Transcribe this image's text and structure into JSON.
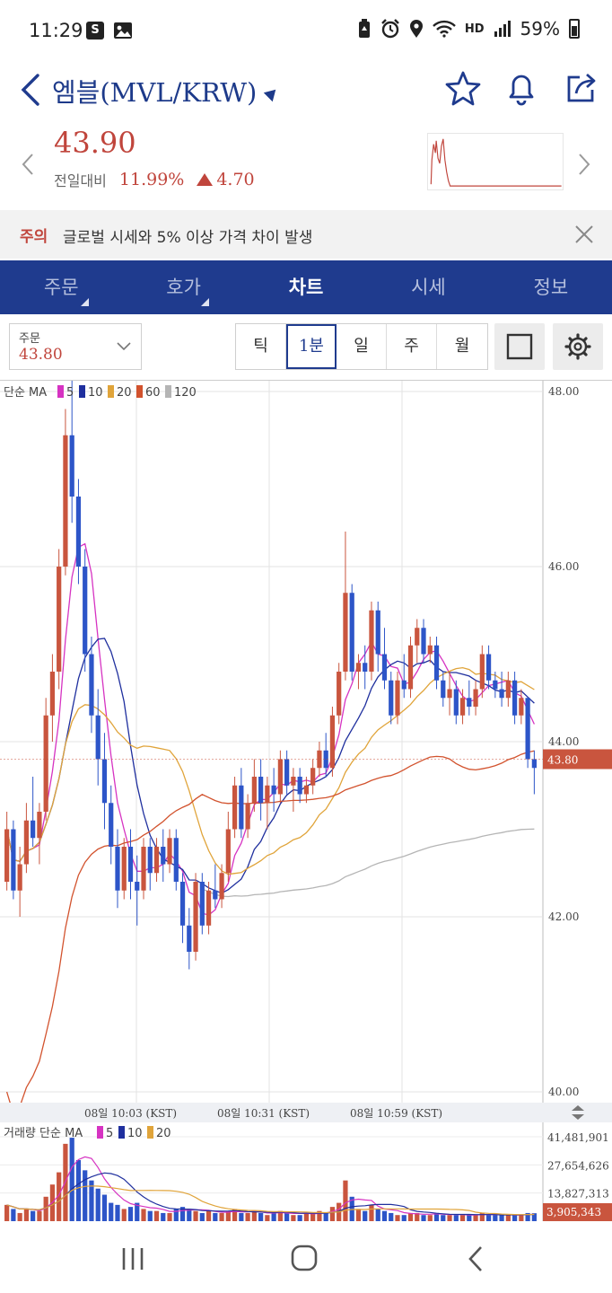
{
  "status": {
    "time": "11:29",
    "battery": "59%",
    "hd_label": "HD",
    "left_icons": [
      "s-badge-icon",
      "gallery-icon"
    ],
    "right_icons": [
      "battery-saver-icon",
      "alarm-icon",
      "location-icon",
      "wifi-icon",
      "signal-icon",
      "battery-icon"
    ]
  },
  "header": {
    "title": "엠블(MVL/KRW)",
    "icons": [
      "back-icon",
      "star-icon",
      "bell-icon",
      "share-icon"
    ]
  },
  "price": {
    "current": "43.90",
    "change_label": "전일대비",
    "change_rate": "11.99%",
    "change_amount": "4.70",
    "accent": "#c0453c"
  },
  "warning": {
    "tag": "주의",
    "message": "글로벌 시세와 5% 이상 가격 차이 발생"
  },
  "tabs": [
    {
      "label": "주문",
      "active": false,
      "has_menu": true
    },
    {
      "label": "호가",
      "active": false,
      "has_menu": true
    },
    {
      "label": "차트",
      "active": true,
      "has_menu": false
    },
    {
      "label": "시세",
      "active": false,
      "has_menu": false
    },
    {
      "label": "정보",
      "active": false,
      "has_menu": false
    }
  ],
  "toolbar": {
    "order_label": "주문",
    "order_value": "43.80",
    "intervals": [
      "틱",
      "1분",
      "일",
      "주",
      "월"
    ],
    "active_interval": "1분"
  },
  "chart_data": {
    "type": "candlestick",
    "price_legend": {
      "label": "단순 MA",
      "periods": [
        "5",
        "10",
        "20",
        "60",
        "120"
      ],
      "colors": [
        "#d633c2",
        "#1f2f9e",
        "#e0a43a",
        "#d2522d",
        "#b5b5b5"
      ]
    },
    "volume_legend": {
      "label": "거래량 단순 MA",
      "periods": [
        "5",
        "10",
        "20"
      ],
      "colors": [
        "#d633c2",
        "#1f2f9e",
        "#e0a43a"
      ]
    },
    "y_ticks": [
      "48.00",
      "46.00",
      "44.00",
      "42.00",
      "40.00"
    ],
    "ylim": [
      40,
      48
    ],
    "current_price_tag": "43.80",
    "x_ticks": [
      "08일 10:03 (KST)",
      "08일 10:31 (KST)",
      "08일 10:59 (KST)"
    ],
    "volume_ticks": [
      "41,481,901",
      "27,654,626",
      "13,827,313"
    ],
    "current_volume_tag": "3,905,343",
    "up_color": "#c9553e",
    "down_color": "#2d55c8",
    "candles": [
      [
        42.4,
        43.2,
        42.3,
        43.0
      ],
      [
        43.0,
        43.1,
        42.2,
        42.3
      ],
      [
        42.3,
        42.8,
        42.0,
        42.6
      ],
      [
        42.6,
        43.3,
        42.5,
        43.1
      ],
      [
        43.1,
        43.6,
        42.8,
        42.9
      ],
      [
        42.9,
        43.3,
        42.6,
        43.2
      ],
      [
        43.2,
        44.5,
        43.1,
        44.3
      ],
      [
        44.3,
        45.0,
        44.0,
        44.8
      ],
      [
        44.8,
        46.2,
        44.6,
        46.0
      ],
      [
        46.0,
        47.8,
        45.9,
        47.5
      ],
      [
        47.5,
        48.2,
        46.5,
        46.8
      ],
      [
        46.8,
        47.0,
        45.8,
        46.0
      ],
      [
        46.0,
        46.2,
        44.8,
        45.0
      ],
      [
        45.0,
        45.2,
        44.1,
        44.3
      ],
      [
        44.3,
        44.6,
        43.5,
        43.8
      ],
      [
        43.8,
        44.1,
        43.0,
        43.3
      ],
      [
        43.3,
        43.5,
        42.6,
        42.8
      ],
      [
        42.8,
        43.0,
        42.1,
        42.3
      ],
      [
        42.3,
        42.9,
        42.2,
        42.8
      ],
      [
        42.8,
        43.0,
        42.2,
        42.4
      ],
      [
        42.4,
        42.7,
        41.9,
        42.3
      ],
      [
        42.3,
        42.9,
        42.2,
        42.8
      ],
      [
        42.8,
        42.9,
        42.3,
        42.5
      ],
      [
        42.5,
        42.9,
        42.4,
        42.8
      ],
      [
        42.8,
        43.0,
        42.4,
        42.6
      ],
      [
        42.6,
        43.0,
        42.5,
        42.9
      ],
      [
        42.9,
        43.0,
        42.3,
        42.4
      ],
      [
        42.4,
        42.5,
        41.7,
        41.9
      ],
      [
        41.9,
        42.1,
        41.4,
        41.6
      ],
      [
        41.6,
        42.5,
        41.5,
        42.4
      ],
      [
        42.4,
        42.5,
        41.8,
        41.9
      ],
      [
        41.9,
        42.4,
        41.8,
        42.3
      ],
      [
        42.3,
        42.6,
        42.1,
        42.2
      ],
      [
        42.2,
        42.6,
        42.1,
        42.5
      ],
      [
        42.5,
        43.2,
        42.4,
        43.0
      ],
      [
        43.0,
        43.6,
        42.9,
        43.5
      ],
      [
        43.5,
        43.7,
        42.9,
        43.0
      ],
      [
        43.0,
        43.4,
        42.9,
        43.3
      ],
      [
        43.3,
        43.8,
        43.2,
        43.6
      ],
      [
        43.6,
        43.8,
        43.1,
        43.3
      ],
      [
        43.3,
        43.6,
        43.0,
        43.5
      ],
      [
        43.5,
        43.7,
        43.2,
        43.4
      ],
      [
        43.4,
        43.9,
        43.3,
        43.8
      ],
      [
        43.8,
        43.9,
        43.4,
        43.5
      ],
      [
        43.5,
        43.7,
        43.2,
        43.6
      ],
      [
        43.6,
        43.7,
        43.3,
        43.4
      ],
      [
        43.4,
        43.6,
        43.3,
        43.5
      ],
      [
        43.5,
        43.8,
        43.4,
        43.7
      ],
      [
        43.7,
        44.0,
        43.6,
        43.9
      ],
      [
        43.9,
        44.1,
        43.6,
        43.7
      ],
      [
        43.7,
        44.4,
        43.6,
        44.3
      ],
      [
        44.3,
        44.9,
        44.2,
        44.8
      ],
      [
        44.8,
        46.4,
        44.7,
        45.7
      ],
      [
        45.7,
        45.8,
        44.7,
        44.8
      ],
      [
        44.8,
        45.0,
        44.6,
        44.9
      ],
      [
        44.9,
        45.1,
        44.6,
        44.8
      ],
      [
        44.8,
        45.6,
        44.7,
        45.5
      ],
      [
        45.5,
        45.6,
        44.8,
        45.0
      ],
      [
        45.0,
        45.3,
        44.6,
        44.7
      ],
      [
        44.7,
        44.8,
        44.2,
        44.3
      ],
      [
        44.3,
        44.8,
        44.2,
        44.7
      ],
      [
        44.7,
        45.0,
        44.5,
        44.6
      ],
      [
        44.6,
        45.2,
        44.5,
        45.1
      ],
      [
        45.1,
        45.4,
        44.9,
        45.3
      ],
      [
        45.3,
        45.4,
        44.9,
        45.0
      ],
      [
        45.0,
        45.2,
        44.9,
        45.1
      ],
      [
        45.1,
        45.2,
        44.6,
        44.7
      ],
      [
        44.7,
        44.8,
        44.4,
        44.5
      ],
      [
        44.5,
        44.8,
        44.3,
        44.6
      ],
      [
        44.6,
        44.7,
        44.2,
        44.3
      ],
      [
        44.3,
        44.6,
        44.2,
        44.5
      ],
      [
        44.5,
        44.7,
        44.3,
        44.4
      ],
      [
        44.4,
        44.7,
        44.3,
        44.6
      ],
      [
        44.6,
        45.1,
        44.5,
        45.0
      ],
      [
        45.0,
        45.1,
        44.6,
        44.7
      ],
      [
        44.7,
        44.8,
        44.5,
        44.6
      ],
      [
        44.6,
        44.8,
        44.4,
        44.5
      ],
      [
        44.5,
        44.8,
        44.4,
        44.7
      ],
      [
        44.7,
        44.8,
        44.2,
        44.3
      ],
      [
        44.3,
        44.6,
        44.2,
        44.5
      ],
      [
        44.5,
        44.5,
        43.7,
        43.8
      ],
      [
        43.8,
        43.9,
        43.4,
        43.7
      ]
    ],
    "volume": [
      8,
      6,
      4,
      6,
      5,
      5,
      12,
      18,
      24,
      38,
      41,
      30,
      25,
      20,
      16,
      13,
      9,
      8,
      6,
      7,
      9,
      6,
      5,
      5,
      4,
      4,
      6,
      7,
      6,
      5,
      4,
      5,
      4,
      4,
      5,
      6,
      4,
      4,
      5,
      4,
      3,
      4,
      5,
      4,
      3,
      3,
      4,
      4,
      5,
      4,
      7,
      9,
      20,
      12,
      6,
      5,
      8,
      6,
      5,
      4,
      3,
      3,
      4,
      4,
      3,
      3,
      4,
      3,
      3,
      3,
      3,
      3,
      3,
      4,
      3,
      3,
      3,
      3,
      3,
      3,
      4,
      3.9
    ]
  }
}
